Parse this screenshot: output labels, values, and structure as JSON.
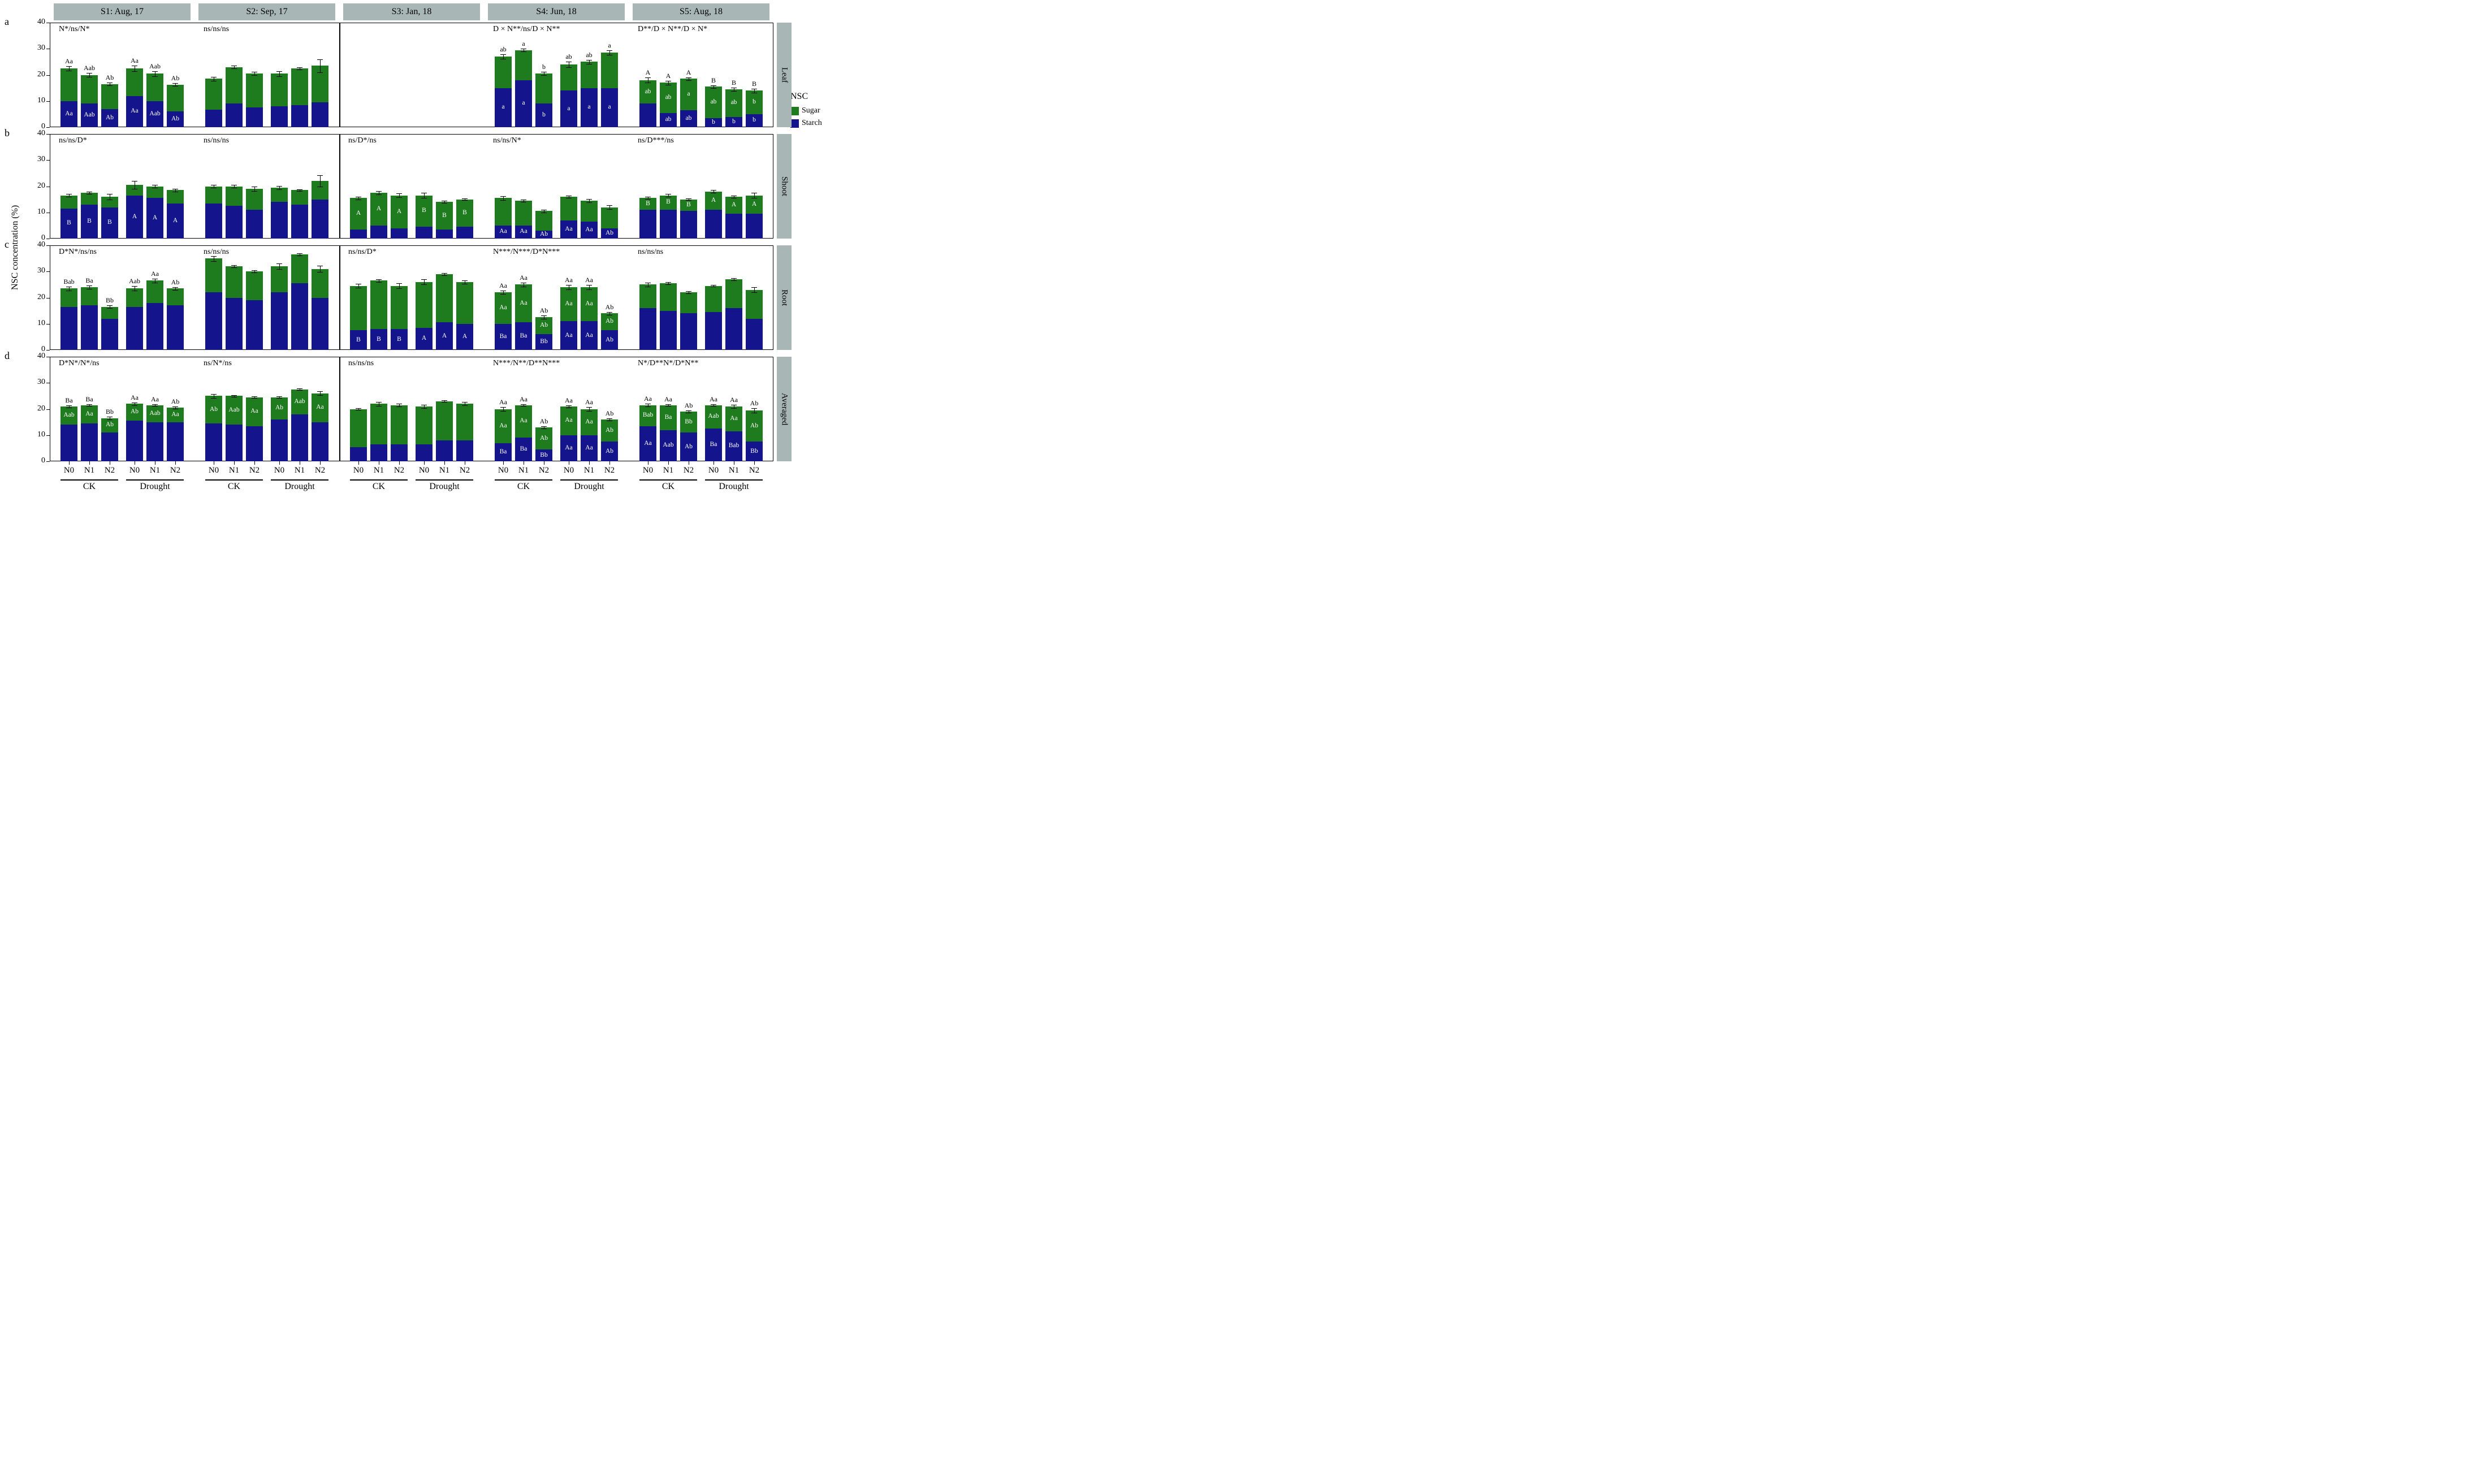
{
  "chart_data": {
    "type": "bar",
    "stacked": true,
    "orientation": "vertical",
    "ylabel": "NSC concentration (%)",
    "ylim": [
      0,
      40
    ],
    "yticks": [
      0,
      10,
      20,
      30,
      40
    ],
    "seasons": [
      "S1: Aug, 17",
      "S2: Sep, 17",
      "S3: Jan, 18",
      "S4: Jun, 18",
      "S5: Aug, 18"
    ],
    "groups": [
      "CK",
      "Drought"
    ],
    "nitrogen_levels": [
      "N0",
      "N1",
      "N2"
    ],
    "bar_order": [
      "CK-N0",
      "CK-N1",
      "CK-N2",
      "Drought-N0",
      "Drought-N1",
      "Drought-N2"
    ],
    "series_colors": {
      "sugar": "#1e7b1e",
      "starch": "#14148c"
    },
    "strip_color": "#a8b6b6",
    "legend": {
      "title": "NSC",
      "entries": [
        "Sugar",
        "Starch"
      ]
    },
    "panels": [
      {
        "letter": "a",
        "tissue": "Leaf",
        "annotations": [
          "N*/ns/N*",
          "ns/ns/ns",
          "",
          "D × N**/ns/D × N**",
          "D**/D × N**/D × N*"
        ],
        "data": [
          [
            {
              "st": 10,
              "tot": 22.5,
              "err": 0.8,
              "top": "Aa",
              "sta": "Aa"
            },
            {
              "st": 9,
              "tot": 20,
              "err": 0.8,
              "top": "Aab",
              "sta": "Aab"
            },
            {
              "st": 7,
              "tot": 16.5,
              "err": 0.5,
              "top": "Ab",
              "sta": "Ab"
            },
            {
              "st": 12,
              "tot": 22.5,
              "err": 1,
              "top": "Aa",
              "sta": "Aa"
            },
            {
              "st": 10,
              "tot": 20.5,
              "err": 1,
              "top": "Aab",
              "sta": "Aab"
            },
            {
              "st": 6,
              "tot": 16.3,
              "err": 0.6,
              "top": "Ab",
              "sta": "Ab"
            }
          ],
          [
            {
              "st": 6.8,
              "tot": 18.5,
              "err": 0.7
            },
            {
              "st": 9,
              "tot": 23,
              "err": 0.5
            },
            {
              "st": 7.5,
              "tot": 20.5,
              "err": 0.6
            },
            {
              "st": 8,
              "tot": 20.5,
              "err": 1
            },
            {
              "st": 8.5,
              "tot": 22.5,
              "err": 0.5
            },
            {
              "st": 9.5,
              "tot": 23.5,
              "err": 2.5
            }
          ],
          [],
          [
            {
              "st": 15,
              "tot": 27,
              "err": 0.8,
              "top": "ab",
              "sta": "a"
            },
            {
              "st": 18,
              "tot": 29.5,
              "err": 0.6,
              "top": "a",
              "sta": "a"
            },
            {
              "st": 9,
              "tot": 20.5,
              "err": 0.6,
              "top": "b",
              "sta": "b"
            },
            {
              "st": 14,
              "tot": 24,
              "err": 1,
              "top": "ab",
              "sta": "a"
            },
            {
              "st": 15,
              "tot": 25,
              "err": 0.8,
              "top": "ab",
              "sta": "a"
            },
            {
              "st": 15,
              "tot": 28.5,
              "err": 0.8,
              "top": "a",
              "sta": "a"
            }
          ],
          [
            {
              "st": 9,
              "tot": 18,
              "err": 1,
              "top": "A",
              "sug": "ab"
            },
            {
              "st": 5.5,
              "tot": 17,
              "err": 0.8,
              "top": "A",
              "sug": "ab",
              "sta": "ab"
            },
            {
              "st": 6.5,
              "tot": 18.5,
              "err": 0.6,
              "top": "A",
              "sug": "a",
              "sta": "ab"
            },
            {
              "st": 3.5,
              "tot": 15.5,
              "err": 0.6,
              "top": "B",
              "sug": "ab",
              "sta": "b"
            },
            {
              "st": 4,
              "tot": 14.5,
              "err": 0.7,
              "top": "B",
              "sug": "ab",
              "sta": "b"
            },
            {
              "st": 5,
              "tot": 14,
              "err": 0.8,
              "top": "B",
              "sug": "b",
              "sta": "b"
            }
          ]
        ]
      },
      {
        "letter": "b",
        "tissue": "Shoot",
        "annotations": [
          "ns/ns/D*",
          "ns/ns/ns",
          "ns/D*/ns",
          "ns/ns/N*",
          "ns/D***/ns"
        ],
        "data": [
          [
            {
              "st": 11.5,
              "tot": 16.5,
              "err": 0.5,
              "sta": "B"
            },
            {
              "st": 13,
              "tot": 17.5,
              "err": 0.5,
              "sta": "B"
            },
            {
              "st": 12,
              "tot": 16,
              "err": 1,
              "sta": "B"
            },
            {
              "st": 16.5,
              "tot": 20.5,
              "err": 1.5,
              "sta": "A"
            },
            {
              "st": 15.5,
              "tot": 20,
              "err": 0.5,
              "sta": "A"
            },
            {
              "st": 13.5,
              "tot": 18.5,
              "err": 0.5,
              "sta": "A"
            }
          ],
          [
            {
              "st": 13.5,
              "tot": 20,
              "err": 0.6
            },
            {
              "st": 12.5,
              "tot": 20,
              "err": 0.5
            },
            {
              "st": 11,
              "tot": 19,
              "err": 0.8
            },
            {
              "st": 14,
              "tot": 19.5,
              "err": 0.7
            },
            {
              "st": 13,
              "tot": 18.5,
              "err": 0.4
            },
            {
              "st": 15,
              "tot": 22,
              "err": 2.2
            }
          ],
          [
            {
              "st": 3.5,
              "tot": 15.5,
              "err": 0.5,
              "sug": "A"
            },
            {
              "st": 5,
              "tot": 17.5,
              "err": 0.7,
              "sug": "A"
            },
            {
              "st": 4,
              "tot": 16.5,
              "err": 0.8,
              "sug": "A"
            },
            {
              "st": 4.5,
              "tot": 16.5,
              "err": 1,
              "sug": "B"
            },
            {
              "st": 3.5,
              "tot": 14,
              "err": 0.4,
              "sug": "B"
            },
            {
              "st": 4.5,
              "tot": 15,
              "err": 0.3,
              "sug": "B"
            }
          ],
          [
            {
              "st": 5,
              "tot": 15.5,
              "err": 0.8,
              "sta": "Aa"
            },
            {
              "st": 5,
              "tot": 14.5,
              "err": 0.4,
              "sta": "Aa"
            },
            {
              "st": 3,
              "tot": 10.5,
              "err": 0.5,
              "sta": "Ab"
            },
            {
              "st": 7,
              "tot": 16,
              "err": 0.5,
              "sta": "Aa"
            },
            {
              "st": 6.5,
              "tot": 14.5,
              "err": 0.7,
              "sta": "Aa"
            },
            {
              "st": 4,
              "tot": 12,
              "err": 0.7,
              "sta": "Ab"
            }
          ],
          [
            {
              "st": 11,
              "tot": 15.5,
              "err": 0.4,
              "sug": "B"
            },
            {
              "st": 11,
              "tot": 16.5,
              "err": 0.6,
              "sug": "B"
            },
            {
              "st": 10.5,
              "tot": 15,
              "err": 0.4,
              "sug": "B"
            },
            {
              "st": 11,
              "tot": 18,
              "err": 0.5,
              "sug": "A"
            },
            {
              "st": 9.5,
              "tot": 16,
              "err": 0.4,
              "sug": "A"
            },
            {
              "st": 9.5,
              "tot": 16.5,
              "err": 1,
              "sug": "A"
            }
          ]
        ]
      },
      {
        "letter": "c",
        "tissue": "Root",
        "annotations": [
          "D*N*/ns/ns",
          "ns/ns/ns",
          "ns/ns/D*",
          "N***/N***/D*N***",
          "ns/ns/ns"
        ],
        "data": [
          [
            {
              "st": 16.5,
              "tot": 23.5,
              "err": 0.7,
              "top": "Bab"
            },
            {
              "st": 17,
              "tot": 24,
              "err": 0.6,
              "top": "Ba"
            },
            {
              "st": 12,
              "tot": 16.5,
              "err": 0.5,
              "top": "Bb"
            },
            {
              "st": 16.5,
              "tot": 23.5,
              "err": 0.9,
              "top": "Aab"
            },
            {
              "st": 18,
              "tot": 26.5,
              "err": 0.7,
              "top": "Aa"
            },
            {
              "st": 17,
              "tot": 23.5,
              "err": 0.6,
              "top": "Ab"
            }
          ],
          [
            {
              "st": 22,
              "tot": 35,
              "err": 1
            },
            {
              "st": 20,
              "tot": 32,
              "err": 0.4
            },
            {
              "st": 19,
              "tot": 30,
              "err": 0.4
            },
            {
              "st": 22,
              "tot": 32,
              "err": 1
            },
            {
              "st": 25.5,
              "tot": 36.5,
              "err": 0.4
            },
            {
              "st": 20,
              "tot": 31,
              "err": 1.2
            }
          ],
          [
            {
              "st": 7.5,
              "tot": 24.5,
              "err": 0.8,
              "sta": "B"
            },
            {
              "st": 8,
              "tot": 26.5,
              "err": 0.5,
              "sta": "B"
            },
            {
              "st": 8,
              "tot": 24.5,
              "err": 1,
              "sta": "B"
            },
            {
              "st": 8.5,
              "tot": 26,
              "err": 1,
              "sta": "A"
            },
            {
              "st": 10.5,
              "tot": 29,
              "err": 0.5,
              "sta": "A"
            },
            {
              "st": 10,
              "tot": 26,
              "err": 0.6,
              "sta": "A"
            }
          ],
          [
            {
              "st": 10,
              "tot": 22,
              "err": 0.7,
              "top": "Aa",
              "sug": "Aa",
              "sta": "Ba"
            },
            {
              "st": 10.5,
              "tot": 25,
              "err": 0.8,
              "top": "Aa",
              "sug": "Aa",
              "sta": "Ba"
            },
            {
              "st": 6,
              "tot": 12.5,
              "err": 0.6,
              "top": "Ab",
              "sug": "Ab",
              "sta": "Bb"
            },
            {
              "st": 11,
              "tot": 24,
              "err": 0.8,
              "top": "Aa",
              "sug": "Aa",
              "sta": "Aa"
            },
            {
              "st": 11,
              "tot": 24,
              "err": 0.8,
              "top": "Aa",
              "sug": "Aa",
              "sta": "Aa"
            },
            {
              "st": 7.5,
              "tot": 14,
              "err": 0.5,
              "top": "Ab",
              "sug": "Ab",
              "sta": "Ab"
            }
          ],
          [
            {
              "st": 16,
              "tot": 25,
              "err": 0.8
            },
            {
              "st": 15,
              "tot": 25.5,
              "err": 0.4
            },
            {
              "st": 14,
              "tot": 22,
              "err": 0.4
            },
            {
              "st": 14.5,
              "tot": 24.5,
              "err": 0.3
            },
            {
              "st": 16,
              "tot": 27,
              "err": 0.5
            },
            {
              "st": 12,
              "tot": 23,
              "err": 0.9
            }
          ]
        ]
      },
      {
        "letter": "d",
        "tissue": "Averaged",
        "annotations": [
          "D*N*/N*/ns",
          "ns/N*/ns",
          "ns/ns/ns",
          "N***/N**/D**N***",
          "N*/D**N*/D*N**"
        ],
        "data": [
          [
            {
              "st": 14,
              "tot": 21,
              "err": 0.4,
              "top": "Ba",
              "sug": "Aab"
            },
            {
              "st": 14.5,
              "tot": 21.5,
              "err": 0.4,
              "top": "Ba",
              "sug": "Aa"
            },
            {
              "st": 11,
              "tot": 16.5,
              "err": 0.5,
              "top": "Bb",
              "sug": "Ab"
            },
            {
              "st": 15.5,
              "tot": 22,
              "err": 0.5,
              "top": "Aa",
              "sug": "Ab"
            },
            {
              "st": 15,
              "tot": 21.5,
              "err": 0.4,
              "top": "Aa",
              "sug": "Aab"
            },
            {
              "st": 15,
              "tot": 20.5,
              "err": 0.4,
              "top": "Ab",
              "sug": "Aa"
            }
          ],
          [
            {
              "st": 14.5,
              "tot": 25,
              "err": 0.8,
              "sug": "Ab"
            },
            {
              "st": 14,
              "tot": 25,
              "err": 0.4,
              "sug": "Aab"
            },
            {
              "st": 13.5,
              "tot": 24.5,
              "err": 0.3,
              "sug": "Aa"
            },
            {
              "st": 16,
              "tot": 24.5,
              "err": 0.3,
              "sug": "Ab"
            },
            {
              "st": 18,
              "tot": 27.5,
              "err": 0.3,
              "sug": "Aab"
            },
            {
              "st": 15,
              "tot": 26,
              "err": 0.8,
              "sug": "Aa"
            }
          ],
          [
            {
              "st": 5.5,
              "tot": 20,
              "err": 0.4
            },
            {
              "st": 6.5,
              "tot": 22,
              "err": 0.8
            },
            {
              "st": 6.5,
              "tot": 21.5,
              "err": 0.5
            },
            {
              "st": 6.5,
              "tot": 21,
              "err": 0.6
            },
            {
              "st": 8,
              "tot": 23,
              "err": 0.4
            },
            {
              "st": 8,
              "tot": 22,
              "err": 0.6
            }
          ],
          [
            {
              "st": 7,
              "tot": 20,
              "err": 0.7,
              "top": "Aa",
              "sug": "Aa",
              "sta": "Ba"
            },
            {
              "st": 9,
              "tot": 21.5,
              "err": 0.4,
              "top": "Aa",
              "sug": "Aa",
              "sta": "Ba"
            },
            {
              "st": 4.5,
              "tot": 13,
              "err": 0.4,
              "top": "Ab",
              "sug": "Ab",
              "sta": "Bb"
            },
            {
              "st": 10,
              "tot": 21,
              "err": 0.4,
              "top": "Aa",
              "sug": "Aa",
              "sta": "Aa"
            },
            {
              "st": 10,
              "tot": 20,
              "err": 0.8,
              "top": "Aa",
              "sug": "Aa",
              "sta": "Aa"
            },
            {
              "st": 7.5,
              "tot": 16,
              "err": 0.5,
              "top": "Ab",
              "sug": "Ab",
              "sta": "Ab"
            }
          ],
          [
            {
              "st": 13.5,
              "tot": 21.5,
              "err": 0.5,
              "top": "Aa",
              "sug": "Bab",
              "sta": "Aa"
            },
            {
              "st": 12,
              "tot": 21.5,
              "err": 0.4,
              "top": "Aa",
              "sug": "Ba",
              "sta": "Aab"
            },
            {
              "st": 11,
              "tot": 19,
              "err": 0.4,
              "top": "Ab",
              "sug": "Bb",
              "sta": "Ab"
            },
            {
              "st": 12.5,
              "tot": 21.5,
              "err": 0.4,
              "top": "Aa",
              "sug": "Aab",
              "sta": "Ba"
            },
            {
              "st": 11.5,
              "tot": 21,
              "err": 0.6,
              "top": "Aa",
              "sug": "Aa",
              "sta": "Bab"
            },
            {
              "st": 7.5,
              "tot": 19.5,
              "err": 0.8,
              "top": "Ab",
              "sug": "Ab",
              "sta": "Bb"
            }
          ]
        ]
      }
    ]
  }
}
